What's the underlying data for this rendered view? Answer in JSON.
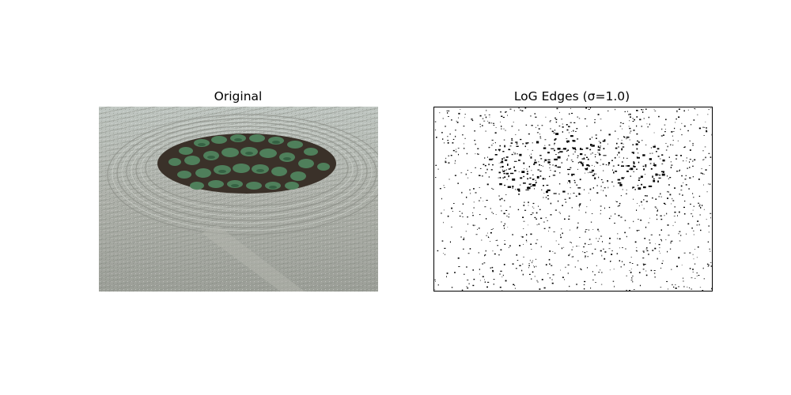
{
  "figure": {
    "panels": [
      {
        "title": "Original",
        "image_description": "raked gravel zen garden with circular moss island"
      },
      {
        "title": "LoG Edges (σ=1.0)",
        "image_description": "binary edge map, black specks on white"
      }
    ]
  },
  "colors": {
    "gravel": "#a6aaa2",
    "gravel_light": "#c5cac4",
    "soil": "#3a3129",
    "moss": "#4f7f5b",
    "moss_dark": "#2f5a3e",
    "edge": "#000000"
  }
}
